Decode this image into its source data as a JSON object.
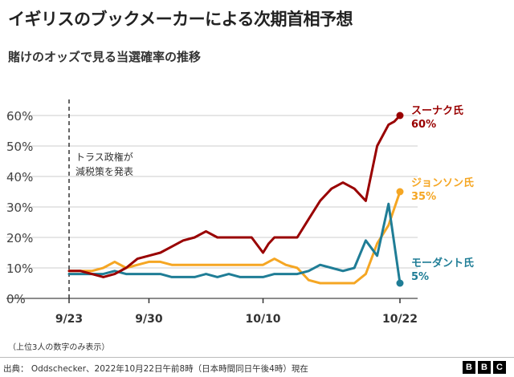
{
  "title": "イギリスのブックメーカーによる次期首相予想",
  "subtitle": "賭けのオッズで見る当選確率の推移",
  "footnote": "（上位3人の数字のみ表示）",
  "source": "出典： Oddschecker、2022年10月22日午前8時（日本時間同日午後4時）現在",
  "logo": [
    "B",
    "B",
    "C"
  ],
  "colors": {
    "sunak": "#990000",
    "johnson": "#F5A623",
    "mordaunt": "#1F7D96",
    "grid": "#cccccc",
    "axis": "#666666"
  },
  "annotation": {
    "line1": "トラス政権が",
    "line2": "減税策を発表",
    "date_index": 0
  },
  "chart_data": {
    "type": "line",
    "title": "イギリスのブックメーカーによる次期首相予想",
    "subtitle": "賭けのオッズで見る当選確率の推移",
    "xlabel": "",
    "ylabel": "",
    "x_range_days": [
      0,
      29
    ],
    "ylim": [
      0,
      60
    ],
    "yticks": [
      0,
      10,
      20,
      30,
      40,
      50,
      60
    ],
    "ytick_labels": [
      "0%",
      "10%",
      "20%",
      "30%",
      "40%",
      "50%",
      "60%"
    ],
    "xticks": [
      {
        "day": 0,
        "label": "9/23"
      },
      {
        "day": 7,
        "label": "9/30"
      },
      {
        "day": 17,
        "label": "10/10"
      },
      {
        "day": 29,
        "label": "10/22"
      }
    ],
    "grid": true,
    "series": [
      {
        "key": "sunak",
        "name": "スーナク氏",
        "end_label": "60%",
        "days": [
          0,
          1,
          2,
          3,
          4,
          5,
          6,
          7,
          8,
          9,
          10,
          11,
          12,
          13,
          14,
          15,
          16,
          17,
          17.5,
          18,
          19,
          20,
          21,
          22,
          23,
          24,
          25,
          26,
          27,
          28,
          28.5,
          29
        ],
        "values": [
          9,
          9,
          8,
          7,
          8,
          10,
          13,
          14,
          15,
          17,
          19,
          20,
          22,
          20,
          20,
          20,
          20,
          15,
          18,
          20,
          20,
          20,
          26,
          32,
          36,
          38,
          36,
          32,
          50,
          57,
          58,
          60
        ]
      },
      {
        "key": "johnson",
        "name": "ジョンソン氏",
        "end_label": "35%",
        "days": [
          0,
          1,
          2,
          3,
          4,
          5,
          6,
          7,
          8,
          9,
          10,
          11,
          12,
          13,
          14,
          15,
          16,
          17,
          18,
          19,
          20,
          21,
          22,
          23,
          24,
          25,
          26,
          27,
          28,
          29
        ],
        "values": [
          9,
          9,
          9,
          10,
          12,
          10,
          11,
          12,
          12,
          11,
          11,
          11,
          11,
          11,
          11,
          11,
          11,
          11,
          13,
          11,
          10,
          6,
          5,
          5,
          5,
          5,
          8,
          18,
          24,
          35
        ]
      },
      {
        "key": "mordaunt",
        "name": "モーダント氏",
        "end_label": "5%",
        "days": [
          0,
          1,
          2,
          3,
          4,
          5,
          6,
          7,
          8,
          9,
          10,
          11,
          12,
          13,
          14,
          15,
          16,
          17,
          18,
          19,
          20,
          21,
          22,
          23,
          24,
          25,
          26,
          27,
          28,
          29
        ],
        "values": [
          8,
          8,
          8,
          8,
          9,
          8,
          8,
          8,
          8,
          7,
          7,
          7,
          8,
          7,
          8,
          7,
          7,
          7,
          8,
          8,
          8,
          9,
          11,
          10,
          9,
          10,
          19,
          14,
          31,
          5
        ]
      }
    ]
  }
}
